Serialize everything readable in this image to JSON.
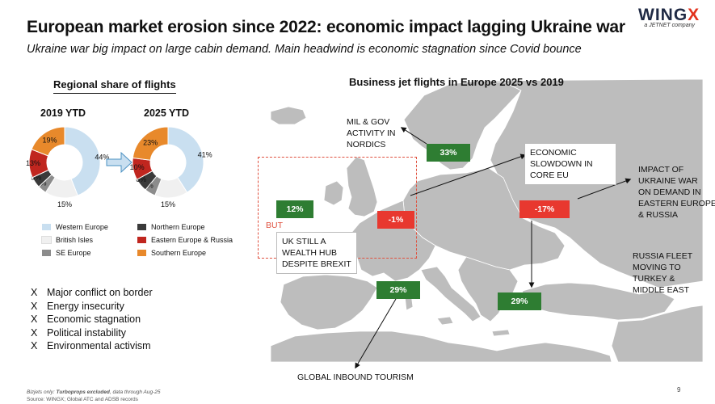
{
  "header": {
    "title": "European market erosion since 2022: economic impact lagging Ukraine war",
    "subtitle": "Ukraine war big impact on large cabin demand. Main headwind is economic stagnation since Covid bounce"
  },
  "logo": {
    "word_main": "WING",
    "word_x": "X",
    "tagline": "a JETNET company"
  },
  "regional": {
    "title": "Regional share of flights",
    "year_2019": "2019 YTD",
    "year_2025": "2025 YTD"
  },
  "chart_data": [
    {
      "type": "pie",
      "title": "2019 YTD",
      "labels": [
        "Western Europe",
        "British Isles",
        "SE Europe",
        "Northern Europe",
        "Eastern Europe & Russia",
        "Southern Europe"
      ],
      "values": [
        44,
        15,
        4,
        5,
        13,
        19
      ],
      "colors": [
        "#c9dff0",
        "#f0f0f0",
        "#8c8c8c",
        "#3a3a3a",
        "#c0261f",
        "#e8892b"
      ]
    },
    {
      "type": "pie",
      "title": "2025 YTD",
      "labels": [
        "Western Europe",
        "British Isles",
        "SE Europe",
        "Northern Europe",
        "Eastern Europe & Russia",
        "Southern Europe"
      ],
      "values": [
        41,
        15,
        5,
        6,
        10,
        23
      ],
      "colors": [
        "#c9dff0",
        "#f0f0f0",
        "#8c8c8c",
        "#3a3a3a",
        "#c0261f",
        "#e8892b"
      ]
    }
  ],
  "legend": [
    {
      "label": "Western Europe",
      "color": "#c9dff0"
    },
    {
      "label": "Northern Europe",
      "color": "#3a3a3a"
    },
    {
      "label": "British Isles",
      "color": "#f0f0f0"
    },
    {
      "label": "Eastern Europe & Russia",
      "color": "#c0261f"
    },
    {
      "label": "SE Europe",
      "color": "#8c8c8c"
    },
    {
      "label": "Southern Europe",
      "color": "#e8892b"
    }
  ],
  "headwinds": [
    {
      "mark": "X",
      "text": "Major conflict on border"
    },
    {
      "mark": "X",
      "text": "Energy insecurity"
    },
    {
      "mark": "X",
      "text": "Economic stagnation"
    },
    {
      "mark": "X",
      "text": "Political instability"
    },
    {
      "mark": "X",
      "text": "Environmental activism"
    }
  ],
  "map": {
    "title": "Business jet flights in Europe 2025 vs 2019",
    "badges": {
      "nordics": "33%",
      "uk": "12%",
      "core": "-1%",
      "east": "-17%",
      "south": "29%",
      "turkey": "29%"
    },
    "annotations": {
      "nordics": [
        "MIL & GOV",
        "ACTIVITY IN",
        "NORDICS"
      ],
      "core": [
        "ECONOMIC",
        "SLOWDOWN IN",
        "CORE EU"
      ],
      "ukraine": [
        "IMPACT OF",
        "UKRAINE WAR",
        "ON DEMAND IN",
        "EASTERN EUROPE",
        "& RUSSIA"
      ],
      "but": "BUT",
      "uk": [
        "UK STILL A",
        "WEALTH HUB",
        "DESPITE BREXIT"
      ],
      "russia_fleet": [
        "RUSSIA FLEET",
        "MOVING TO",
        "TURKEY &",
        "MIDDLE EAST"
      ],
      "tourism": "GLOBAL INBOUND TOURISM"
    },
    "colors": {
      "green": "#2e7d32",
      "red": "#e8382f",
      "land": "#bdbdbd"
    }
  },
  "footer": {
    "footnote_lead": "Bizjets only: ",
    "footnote_bold": "Turboprops excluded",
    "footnote_tail": ", data through Aug-25",
    "source": "Source: WINGX; Global ATC and ADSB records",
    "page": "9"
  }
}
